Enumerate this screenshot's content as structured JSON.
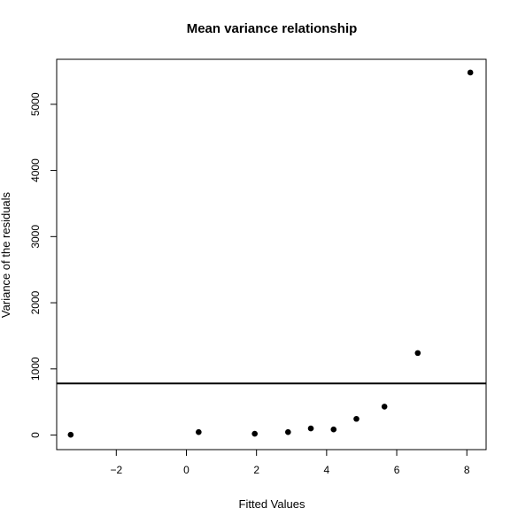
{
  "chart_data": {
    "type": "scatter",
    "title": "Mean variance relationship",
    "xlabel": "Fitted Values",
    "ylabel": "Variance of the residuals",
    "xlim": [
      -3.7,
      8.55
    ],
    "ylim": [
      -220,
      5680
    ],
    "xticks": [
      -2,
      0,
      2,
      4,
      6,
      8
    ],
    "yticks": [
      0,
      1000,
      2000,
      3000,
      4000,
      5000
    ],
    "xtick_labels": [
      "−2",
      "0",
      "2",
      "4",
      "6",
      "8"
    ],
    "ytick_labels": [
      "0",
      "1000",
      "2000",
      "3000",
      "4000",
      "5000"
    ],
    "grid": false,
    "legend": "none",
    "series": [
      {
        "x": [
          -3.3,
          0.35,
          1.95,
          2.9,
          3.55,
          4.2,
          4.85,
          5.65,
          6.6,
          8.1
        ],
        "y": [
          5,
          45,
          20,
          45,
          100,
          85,
          245,
          430,
          1240,
          5480
        ]
      }
    ],
    "reference_line": {
      "orientation": "horizontal",
      "y": 780
    }
  }
}
